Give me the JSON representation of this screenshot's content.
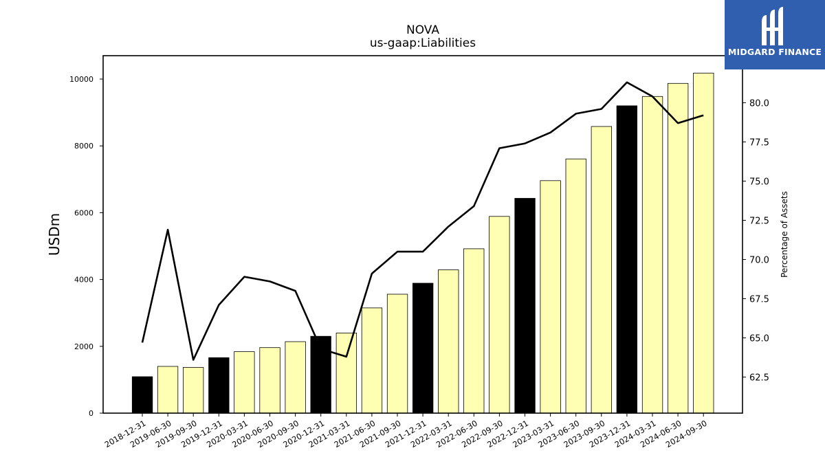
{
  "chart_data": {
    "type": "bar",
    "title": "NOVA",
    "subtitle": "us-gaap:Liabilities",
    "ylabel": "USDm",
    "y2label": "Percentage of Assets",
    "ylim": [
      0,
      10700
    ],
    "y2lim": [
      60.2,
      83.0
    ],
    "yticks": [
      0,
      2000,
      4000,
      6000,
      8000,
      10000
    ],
    "y2ticks": [
      "62.5",
      "65.0",
      "67.5",
      "70.0",
      "72.5",
      "75.0",
      "77.5",
      "80.0"
    ],
    "categories": [
      "2018-12-31",
      "2019-06-30",
      "2019-09-30",
      "2019-12-31",
      "2020-03-31",
      "2020-06-30",
      "2020-09-30",
      "2020-12-31",
      "2021-03-31",
      "2021-06-30",
      "2021-09-30",
      "2021-12-31",
      "2022-03-31",
      "2022-06-30",
      "2022-09-30",
      "2022-12-31",
      "2023-03-31",
      "2023-06-30",
      "2023-09-30",
      "2023-12-31",
      "2024-03-31",
      "2024-06-30",
      "2024-09-30"
    ],
    "series": [
      {
        "kind": "bar",
        "values": [
          1090,
          1400,
          1370,
          1660,
          1840,
          1960,
          2140,
          2300,
          2400,
          3150,
          3560,
          3890,
          4290,
          4920,
          5890,
          6430,
          6960,
          7610,
          8580,
          9200,
          9480,
          9870,
          10180
        ],
        "annual_color": "#000000",
        "quarter_color": "#ffffb3",
        "annual_flags": [
          true,
          false,
          false,
          true,
          false,
          false,
          false,
          true,
          false,
          false,
          false,
          true,
          false,
          false,
          false,
          true,
          false,
          false,
          false,
          true,
          false,
          false,
          false
        ]
      },
      {
        "kind": "line",
        "axis": "right",
        "color": "#000000",
        "values": [
          64.7,
          71.9,
          63.6,
          67.1,
          68.9,
          68.6,
          68.0,
          64.3,
          63.8,
          69.1,
          70.5,
          70.5,
          72.1,
          73.4,
          77.1,
          77.4,
          78.1,
          79.3,
          79.6,
          81.3,
          80.4,
          78.7,
          79.2
        ]
      }
    ],
    "grid": false,
    "legend": "none"
  },
  "branding": {
    "logo_text": "MIDGARD FINANCE",
    "logo_color": "#2f5fae"
  }
}
